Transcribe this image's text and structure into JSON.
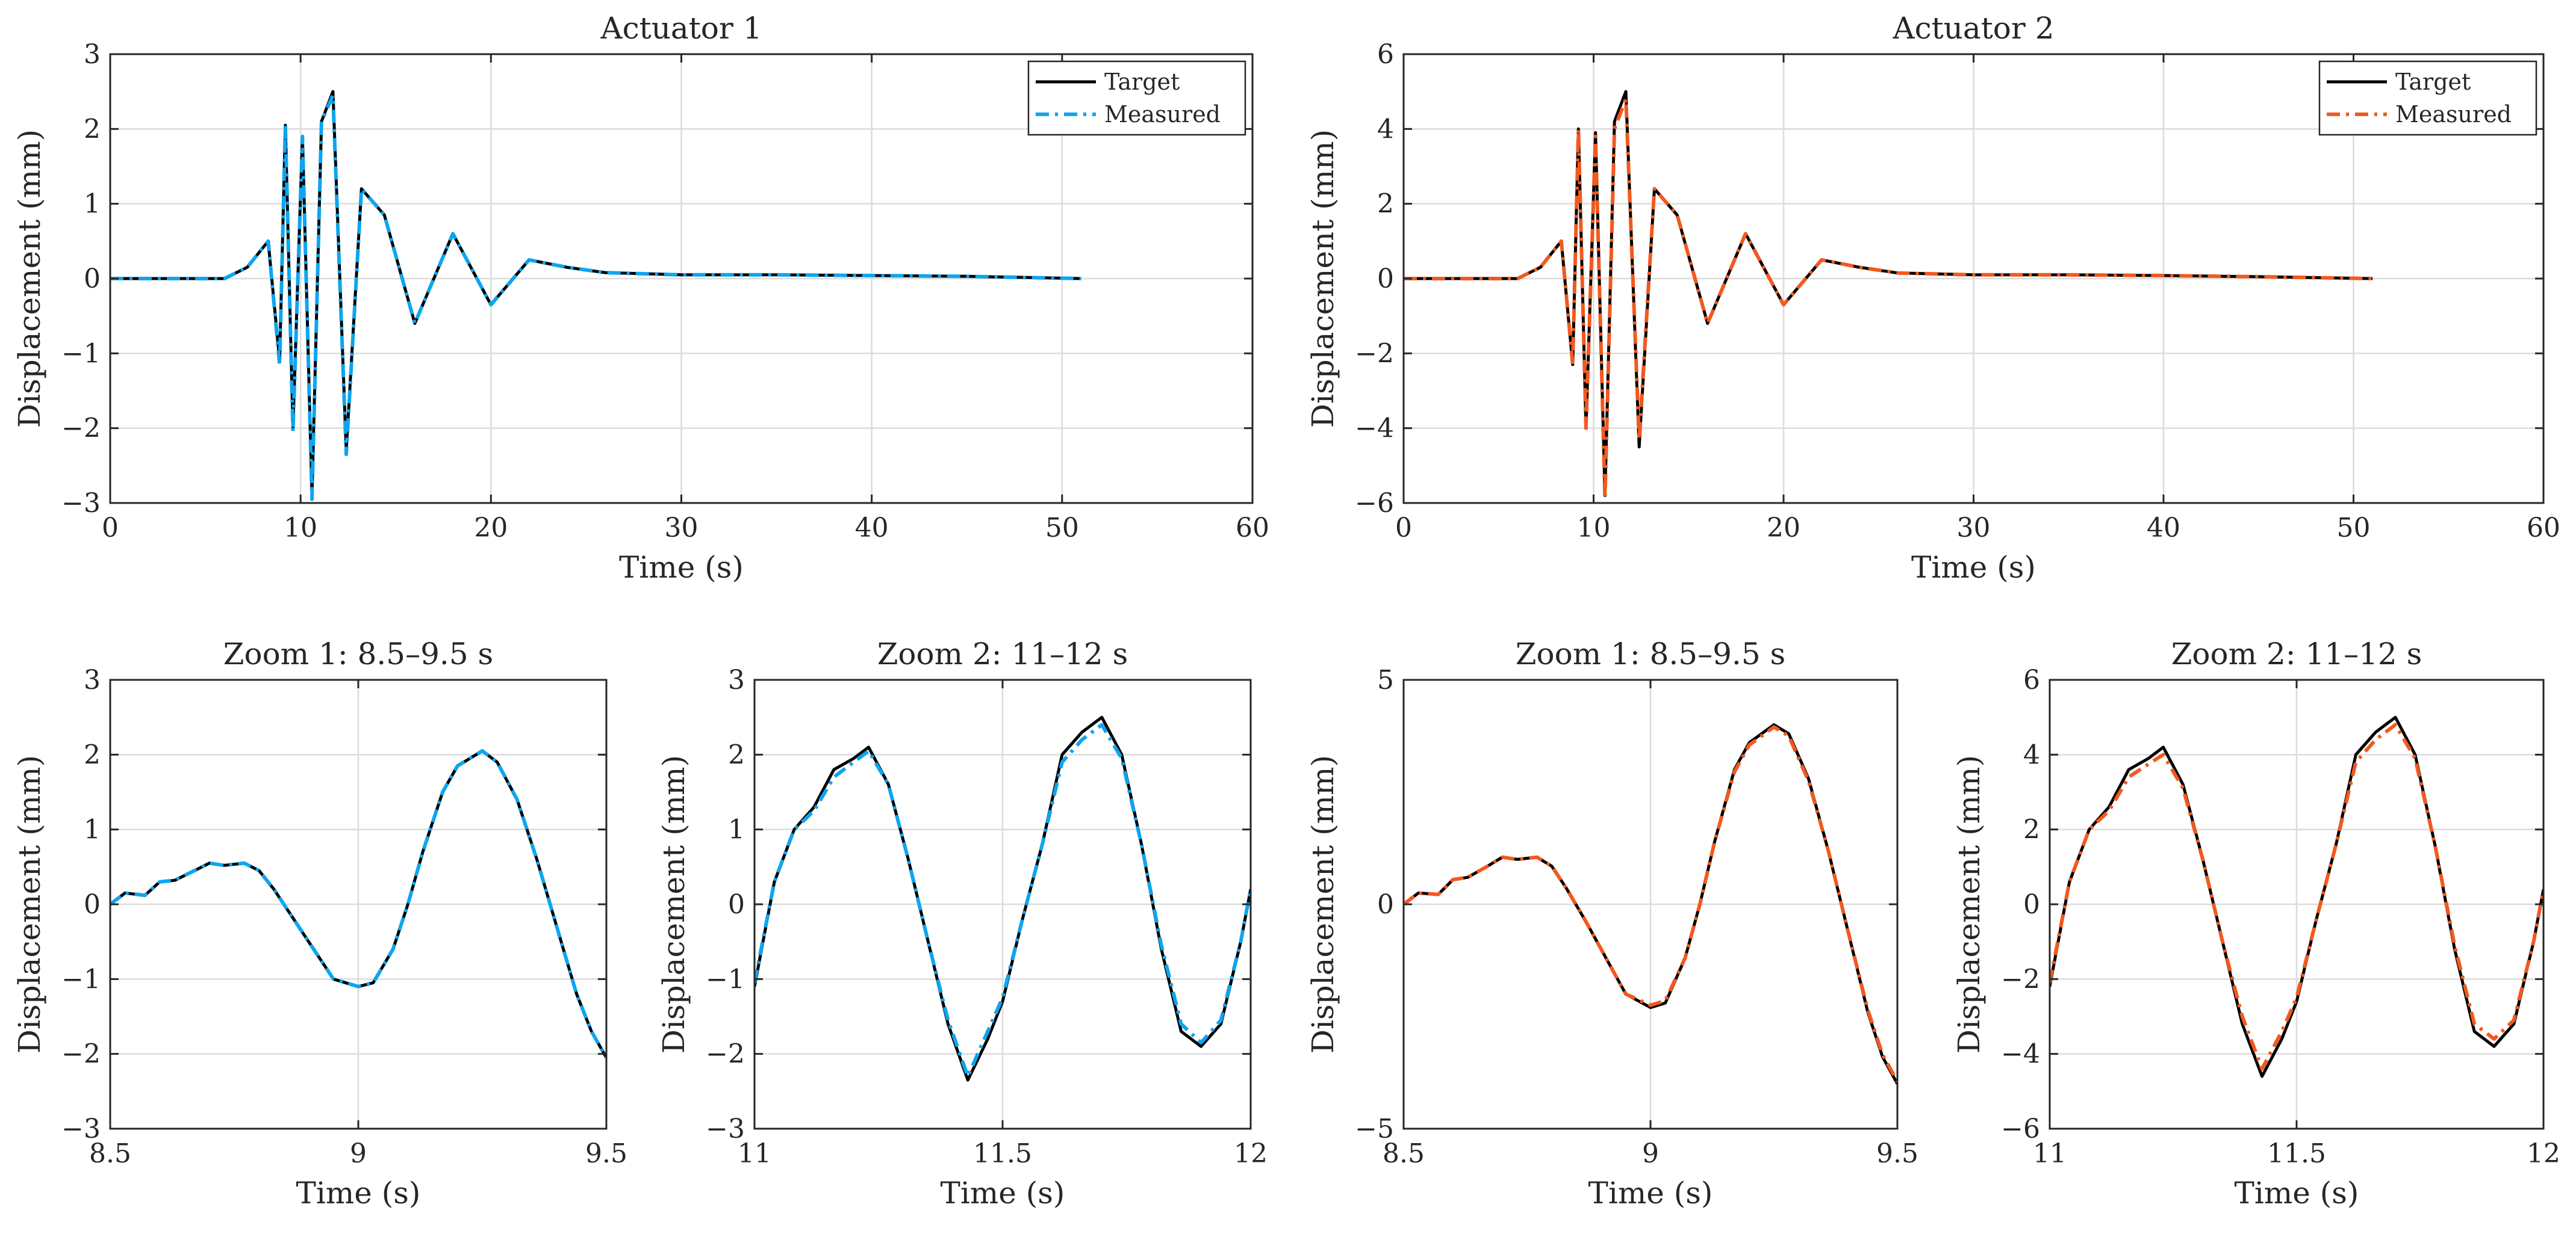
{
  "figure": {
    "legend_labels": {
      "target": "Target",
      "measured": "Measured"
    },
    "colors": {
      "target": "#000000",
      "measured_actuator_1": "#0ea5ef",
      "measured_actuator_2": "#f2591f",
      "grid": "#dcdcdc",
      "axes": "#262626"
    }
  },
  "chart_data": [
    {
      "id": "actuator-1",
      "type": "line",
      "title": "Actuator 1",
      "xlabel": "Time (s)",
      "ylabel": "Displacement (mm)",
      "xlim": [
        0,
        60
      ],
      "ylim": [
        -3,
        3
      ],
      "xticks": [
        0,
        10,
        20,
        30,
        40,
        50,
        60
      ],
      "xtick_labels": [
        "0",
        "10",
        "20",
        "30",
        "40",
        "50",
        "60"
      ],
      "yticks": [
        -3,
        -2,
        -1,
        0,
        1,
        2,
        3
      ],
      "ytick_labels": [
        "−3",
        "−2",
        "−1",
        "0",
        "1",
        "2",
        "3"
      ],
      "legend": "top-right",
      "grid": true,
      "series": [
        {
          "name": "Target",
          "style": "solid",
          "color": "#000000",
          "x": [
            0,
            6,
            7.2,
            8.3,
            8.9,
            9.2,
            9.6,
            10.1,
            10.6,
            11.1,
            11.7,
            12.4,
            13.2,
            14.4,
            16,
            18,
            20,
            22,
            24,
            26,
            30,
            35,
            40,
            45,
            51
          ],
          "y": [
            0,
            0,
            0.15,
            0.5,
            -1.1,
            2.05,
            -2.0,
            1.9,
            -2.9,
            2.1,
            2.5,
            -2.3,
            1.2,
            0.85,
            -0.6,
            0.6,
            -0.35,
            0.25,
            0.15,
            0.08,
            0.05,
            0.05,
            0.04,
            0.03,
            0
          ]
        },
        {
          "name": "Measured",
          "style": "dash-dot",
          "color": "#0ea5ef",
          "x": [
            0,
            6,
            7.2,
            8.3,
            8.9,
            9.2,
            9.6,
            10.1,
            10.6,
            11.1,
            11.7,
            12.4,
            13.2,
            14.4,
            16,
            18,
            20,
            22,
            24,
            26,
            30,
            35,
            40,
            45,
            51
          ],
          "y": [
            0,
            0,
            0.15,
            0.5,
            -1.15,
            2.05,
            -2.05,
            1.9,
            -2.95,
            2.1,
            2.45,
            -2.35,
            1.2,
            0.85,
            -0.6,
            0.6,
            -0.35,
            0.25,
            0.15,
            0.08,
            0.05,
            0.05,
            0.04,
            0.03,
            0
          ]
        }
      ]
    },
    {
      "id": "actuator-2",
      "type": "line",
      "title": "Actuator 2",
      "xlabel": "Time (s)",
      "ylabel": "Displacement (mm)",
      "xlim": [
        0,
        60
      ],
      "ylim": [
        -6,
        6
      ],
      "xticks": [
        0,
        10,
        20,
        30,
        40,
        50,
        60
      ],
      "xtick_labels": [
        "0",
        "10",
        "20",
        "30",
        "40",
        "50",
        "60"
      ],
      "yticks": [
        -6,
        -4,
        -2,
        0,
        2,
        4,
        6
      ],
      "ytick_labels": [
        "−6",
        "−4",
        "−2",
        "0",
        "2",
        "4",
        "6"
      ],
      "legend": "top-right",
      "grid": true,
      "series": [
        {
          "name": "Target",
          "style": "solid",
          "color": "#000000",
          "x": [
            0,
            6,
            7.2,
            8.3,
            8.9,
            9.2,
            9.6,
            10.1,
            10.6,
            11.1,
            11.7,
            12.4,
            13.2,
            14.4,
            16,
            18,
            20,
            22,
            24,
            26,
            30,
            35,
            40,
            45,
            51
          ],
          "y": [
            0,
            0,
            0.3,
            1.0,
            -2.3,
            4.0,
            -4.0,
            3.9,
            -5.8,
            4.2,
            5.0,
            -4.5,
            2.4,
            1.7,
            -1.2,
            1.2,
            -0.7,
            0.5,
            0.3,
            0.15,
            0.1,
            0.1,
            0.08,
            0.05,
            0
          ]
        },
        {
          "name": "Measured",
          "style": "dash-dot",
          "color": "#f2591f",
          "x": [
            0,
            6,
            7.2,
            8.3,
            8.9,
            9.2,
            9.6,
            10.1,
            10.6,
            11.1,
            11.7,
            12.4,
            13.2,
            14.4,
            16,
            18,
            20,
            22,
            24,
            26,
            30,
            35,
            40,
            45,
            51
          ],
          "y": [
            0,
            0,
            0.3,
            1.0,
            -2.3,
            4.0,
            -4.0,
            3.8,
            -5.9,
            4.0,
            4.8,
            -4.3,
            2.4,
            1.7,
            -1.2,
            1.2,
            -0.7,
            0.5,
            0.3,
            0.15,
            0.1,
            0.1,
            0.08,
            0.05,
            0
          ]
        }
      ]
    },
    {
      "id": "actuator-1-zoom-1",
      "type": "line",
      "title": "Zoom 1: 8.5–9.5 s",
      "xlabel": "Time (s)",
      "ylabel": "Displacement (mm)",
      "xlim": [
        8.5,
        9.5
      ],
      "ylim": [
        -3,
        3
      ],
      "xticks": [
        8.5,
        9,
        9.5
      ],
      "xtick_labels": [
        "8.5",
        "9",
        "9.5"
      ],
      "yticks": [
        -3,
        -2,
        -1,
        0,
        1,
        2,
        3
      ],
      "ytick_labels": [
        "−3",
        "−2",
        "−1",
        "0",
        "1",
        "2",
        "3"
      ],
      "grid": true,
      "series": [
        {
          "name": "Target",
          "style": "solid",
          "color": "#000000",
          "x": [
            8.5,
            8.53,
            8.57,
            8.6,
            8.63,
            8.67,
            8.7,
            8.73,
            8.77,
            8.8,
            8.83,
            8.87,
            8.9,
            8.95,
            9.0,
            9.03,
            9.07,
            9.1,
            9.13,
            9.17,
            9.2,
            9.25,
            9.28,
            9.32,
            9.36,
            9.4,
            9.44,
            9.47,
            9.5
          ],
          "y": [
            0.0,
            0.15,
            0.12,
            0.3,
            0.32,
            0.45,
            0.55,
            0.52,
            0.55,
            0.45,
            0.2,
            -0.2,
            -0.5,
            -1.0,
            -1.1,
            -1.05,
            -0.6,
            0.0,
            0.7,
            1.5,
            1.85,
            2.05,
            1.9,
            1.4,
            0.6,
            -0.3,
            -1.2,
            -1.7,
            -2.05
          ]
        },
        {
          "name": "Measured",
          "style": "dash-dot",
          "color": "#0ea5ef",
          "x": [
            8.5,
            8.53,
            8.57,
            8.6,
            8.63,
            8.67,
            8.7,
            8.73,
            8.77,
            8.8,
            8.83,
            8.87,
            8.9,
            8.95,
            9.0,
            9.03,
            9.07,
            9.1,
            9.13,
            9.17,
            9.2,
            9.25,
            9.28,
            9.32,
            9.36,
            9.4,
            9.44,
            9.47,
            9.5
          ],
          "y": [
            0.0,
            0.15,
            0.12,
            0.3,
            0.32,
            0.45,
            0.55,
            0.52,
            0.55,
            0.45,
            0.2,
            -0.2,
            -0.5,
            -1.0,
            -1.1,
            -1.05,
            -0.6,
            0.0,
            0.7,
            1.5,
            1.85,
            2.05,
            1.9,
            1.4,
            0.6,
            -0.3,
            -1.2,
            -1.7,
            -2.05
          ]
        }
      ]
    },
    {
      "id": "actuator-1-zoom-2",
      "type": "line",
      "title": "Zoom 2: 11–12 s",
      "xlabel": "Time (s)",
      "ylabel": "Displacement (mm)",
      "xlim": [
        11,
        12
      ],
      "ylim": [
        -3,
        3
      ],
      "xticks": [
        11,
        11.5,
        12
      ],
      "xtick_labels": [
        "11",
        "11.5",
        "12"
      ],
      "yticks": [
        -3,
        -2,
        -1,
        0,
        1,
        2,
        3
      ],
      "ytick_labels": [
        "−3",
        "−2",
        "−1",
        "0",
        "1",
        "2",
        "3"
      ],
      "grid": true,
      "series": [
        {
          "name": "Target",
          "style": "solid",
          "color": "#000000",
          "x": [
            11.0,
            11.04,
            11.08,
            11.12,
            11.16,
            11.2,
            11.23,
            11.27,
            11.31,
            11.35,
            11.39,
            11.43,
            11.47,
            11.5,
            11.54,
            11.58,
            11.62,
            11.66,
            11.7,
            11.74,
            11.78,
            11.82,
            11.86,
            11.9,
            11.94,
            11.98,
            12.0
          ],
          "y": [
            -1.1,
            0.3,
            1.0,
            1.3,
            1.8,
            1.95,
            2.1,
            1.6,
            0.6,
            -0.5,
            -1.6,
            -2.35,
            -1.8,
            -1.3,
            -0.2,
            0.8,
            2.0,
            2.3,
            2.5,
            2.0,
            0.8,
            -0.6,
            -1.7,
            -1.9,
            -1.6,
            -0.5,
            0.2
          ]
        },
        {
          "name": "Measured",
          "style": "dash-dot",
          "color": "#0ea5ef",
          "x": [
            11.0,
            11.04,
            11.08,
            11.12,
            11.16,
            11.2,
            11.23,
            11.27,
            11.31,
            11.35,
            11.39,
            11.43,
            11.47,
            11.5,
            11.54,
            11.58,
            11.62,
            11.66,
            11.7,
            11.74,
            11.78,
            11.82,
            11.86,
            11.9,
            11.94,
            11.98,
            12.0
          ],
          "y": [
            -1.05,
            0.3,
            1.0,
            1.25,
            1.7,
            1.9,
            2.05,
            1.6,
            0.6,
            -0.5,
            -1.55,
            -2.3,
            -1.7,
            -1.25,
            -0.2,
            0.8,
            1.9,
            2.2,
            2.4,
            1.95,
            0.8,
            -0.55,
            -1.6,
            -1.85,
            -1.55,
            -0.5,
            0.2
          ]
        }
      ]
    },
    {
      "id": "actuator-2-zoom-1",
      "type": "line",
      "title": "Zoom 1: 8.5–9.5 s",
      "xlabel": "Time (s)",
      "ylabel": "Displacement (mm)",
      "xlim": [
        8.5,
        9.5
      ],
      "ylim": [
        -5,
        5
      ],
      "xticks": [
        8.5,
        9,
        9.5
      ],
      "xtick_labels": [
        "8.5",
        "9",
        "9.5"
      ],
      "yticks": [
        -5,
        0,
        5
      ],
      "ytick_labels": [
        "−5",
        "0",
        "5"
      ],
      "grid": true,
      "series": [
        {
          "name": "Target",
          "style": "solid",
          "color": "#000000",
          "x": [
            8.5,
            8.53,
            8.57,
            8.6,
            8.63,
            8.67,
            8.7,
            8.73,
            8.77,
            8.8,
            8.83,
            8.87,
            8.9,
            8.95,
            9.0,
            9.03,
            9.07,
            9.1,
            9.13,
            9.17,
            9.2,
            9.25,
            9.28,
            9.32,
            9.36,
            9.4,
            9.44,
            9.47,
            9.5
          ],
          "y": [
            0.0,
            0.25,
            0.22,
            0.55,
            0.6,
            0.85,
            1.05,
            1.0,
            1.05,
            0.85,
            0.35,
            -0.4,
            -1.0,
            -2.0,
            -2.3,
            -2.2,
            -1.2,
            0.0,
            1.4,
            3.0,
            3.6,
            4.0,
            3.8,
            2.8,
            1.2,
            -0.6,
            -2.4,
            -3.4,
            -4.0
          ]
        },
        {
          "name": "Measured",
          "style": "dash-dot",
          "color": "#f2591f",
          "x": [
            8.5,
            8.53,
            8.57,
            8.6,
            8.63,
            8.67,
            8.7,
            8.73,
            8.77,
            8.8,
            8.83,
            8.87,
            8.9,
            8.95,
            9.0,
            9.03,
            9.07,
            9.1,
            9.13,
            9.17,
            9.2,
            9.25,
            9.28,
            9.32,
            9.36,
            9.4,
            9.44,
            9.47,
            9.5
          ],
          "y": [
            0.0,
            0.25,
            0.22,
            0.55,
            0.6,
            0.85,
            1.05,
            1.0,
            1.05,
            0.85,
            0.35,
            -0.4,
            -1.0,
            -2.0,
            -2.25,
            -2.15,
            -1.2,
            0.0,
            1.4,
            2.95,
            3.55,
            3.95,
            3.75,
            2.75,
            1.2,
            -0.6,
            -2.35,
            -3.35,
            -3.95
          ]
        }
      ]
    },
    {
      "id": "actuator-2-zoom-2",
      "type": "line",
      "title": "Zoom 2: 11–12 s",
      "xlabel": "Time (s)",
      "ylabel": "Displacement (mm)",
      "xlim": [
        11,
        12
      ],
      "ylim": [
        -6,
        6
      ],
      "xticks": [
        11,
        11.5,
        12
      ],
      "xtick_labels": [
        "11",
        "11.5",
        "12"
      ],
      "yticks": [
        -6,
        -4,
        -2,
        0,
        2,
        4,
        6
      ],
      "ytick_labels": [
        "−6",
        "−4",
        "−2",
        "0",
        "2",
        "4",
        "6"
      ],
      "grid": true,
      "series": [
        {
          "name": "Target",
          "style": "solid",
          "color": "#000000",
          "x": [
            11.0,
            11.04,
            11.08,
            11.12,
            11.16,
            11.2,
            11.23,
            11.27,
            11.31,
            11.35,
            11.39,
            11.43,
            11.47,
            11.5,
            11.54,
            11.58,
            11.62,
            11.66,
            11.7,
            11.74,
            11.78,
            11.82,
            11.86,
            11.9,
            11.94,
            11.98,
            12.0
          ],
          "y": [
            -2.2,
            0.6,
            2.0,
            2.6,
            3.6,
            3.9,
            4.2,
            3.2,
            1.2,
            -1.0,
            -3.2,
            -4.6,
            -3.6,
            -2.6,
            -0.4,
            1.6,
            4.0,
            4.6,
            5.0,
            4.0,
            1.6,
            -1.2,
            -3.4,
            -3.8,
            -3.2,
            -1.0,
            0.4
          ]
        },
        {
          "name": "Measured",
          "style": "dash-dot",
          "color": "#f2591f",
          "x": [
            11.0,
            11.04,
            11.08,
            11.12,
            11.16,
            11.2,
            11.23,
            11.27,
            11.31,
            11.35,
            11.39,
            11.43,
            11.47,
            11.5,
            11.54,
            11.58,
            11.62,
            11.66,
            11.7,
            11.74,
            11.78,
            11.82,
            11.86,
            11.9,
            11.94,
            11.98,
            12.0
          ],
          "y": [
            -2.1,
            0.6,
            2.0,
            2.5,
            3.4,
            3.75,
            4.0,
            3.1,
            1.2,
            -1.0,
            -3.0,
            -4.4,
            -3.4,
            -2.5,
            -0.4,
            1.6,
            3.8,
            4.4,
            4.8,
            3.9,
            1.6,
            -1.1,
            -3.2,
            -3.6,
            -3.1,
            -1.0,
            0.4
          ]
        }
      ]
    }
  ]
}
